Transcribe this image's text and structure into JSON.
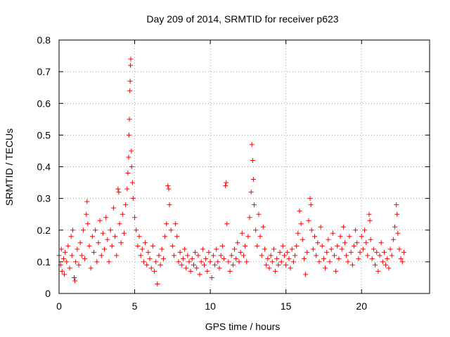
{
  "chart_data": {
    "type": "scatter",
    "title": "Day 209 of 2014, SRMTID for receiver p623",
    "xlabel": "GPS time / hours",
    "ylabel": "SRMTID / TECUs",
    "xlim": [
      0,
      24.5
    ],
    "ylim": [
      0,
      0.8
    ],
    "xticks": [
      0,
      5,
      10,
      15,
      20
    ],
    "yticks": [
      0,
      0.1,
      0.2,
      0.3,
      0.4,
      0.5,
      0.6,
      0.7,
      0.8
    ],
    "xtick_labels": [
      "0",
      "5",
      "10",
      "15",
      "20"
    ],
    "ytick_labels": [
      "0",
      "0.1",
      "0.2",
      "0.3",
      "0.4",
      "0.5",
      "0.6",
      "0.7",
      "0.8"
    ],
    "grid": true,
    "marker": "+",
    "color": "#ff0000",
    "series": [
      {
        "name": "SRMTID",
        "points": [
          [
            0.0,
            0.12
          ],
          [
            0.1,
            0.09
          ],
          [
            0.15,
            0.14
          ],
          [
            0.2,
            0.07
          ],
          [
            0.3,
            0.11
          ],
          [
            0.35,
            0.06
          ],
          [
            0.4,
            0.13
          ],
          [
            0.5,
            0.1
          ],
          [
            0.6,
            0.15
          ],
          [
            0.7,
            0.08
          ],
          [
            0.8,
            0.18
          ],
          [
            0.85,
            0.12
          ],
          [
            0.9,
            0.2
          ],
          [
            1.0,
            0.05
          ],
          [
            1.05,
            0.04
          ],
          [
            1.1,
            0.1
          ],
          [
            1.2,
            0.14
          ],
          [
            1.3,
            0.09
          ],
          [
            1.4,
            0.16
          ],
          [
            1.5,
            0.12
          ],
          [
            1.6,
            0.2
          ],
          [
            1.7,
            0.11
          ],
          [
            1.8,
            0.25
          ],
          [
            1.85,
            0.29
          ],
          [
            1.9,
            0.22
          ],
          [
            2.0,
            0.15
          ],
          [
            2.1,
            0.08
          ],
          [
            2.2,
            0.18
          ],
          [
            2.3,
            0.13
          ],
          [
            2.4,
            0.2
          ],
          [
            2.5,
            0.1
          ],
          [
            2.6,
            0.16
          ],
          [
            2.7,
            0.23
          ],
          [
            2.8,
            0.12
          ],
          [
            2.9,
            0.19
          ],
          [
            3.0,
            0.14
          ],
          [
            3.1,
            0.24
          ],
          [
            3.2,
            0.17
          ],
          [
            3.3,
            0.1
          ],
          [
            3.4,
            0.2
          ],
          [
            3.5,
            0.15
          ],
          [
            3.6,
            0.27
          ],
          [
            3.7,
            0.18
          ],
          [
            3.8,
            0.12
          ],
          [
            3.9,
            0.33
          ],
          [
            3.95,
            0.32
          ],
          [
            4.0,
            0.22
          ],
          [
            4.1,
            0.16
          ],
          [
            4.2,
            0.25
          ],
          [
            4.3,
            0.19
          ],
          [
            4.4,
            0.28
          ],
          [
            4.5,
            0.33
          ],
          [
            4.55,
            0.38
          ],
          [
            4.6,
            0.43
          ],
          [
            4.62,
            0.5
          ],
          [
            4.65,
            0.55
          ],
          [
            4.68,
            0.64
          ],
          [
            4.7,
            0.67
          ],
          [
            4.72,
            0.72
          ],
          [
            4.74,
            0.74
          ],
          [
            4.78,
            0.45
          ],
          [
            4.8,
            0.4
          ],
          [
            4.85,
            0.35
          ],
          [
            4.9,
            0.3
          ],
          [
            5.0,
            0.24
          ],
          [
            5.1,
            0.2
          ],
          [
            5.2,
            0.15
          ],
          [
            5.3,
            0.18
          ],
          [
            5.4,
            0.12
          ],
          [
            5.5,
            0.14
          ],
          [
            5.6,
            0.1
          ],
          [
            5.7,
            0.16
          ],
          [
            5.8,
            0.09
          ],
          [
            5.9,
            0.13
          ],
          [
            6.0,
            0.11
          ],
          [
            6.1,
            0.08
          ],
          [
            6.2,
            0.15
          ],
          [
            6.3,
            0.07
          ],
          [
            6.4,
            0.1
          ],
          [
            6.5,
            0.03
          ],
          [
            6.6,
            0.12
          ],
          [
            6.7,
            0.09
          ],
          [
            6.8,
            0.14
          ],
          [
            6.9,
            0.11
          ],
          [
            7.0,
            0.18
          ],
          [
            7.1,
            0.22
          ],
          [
            7.2,
            0.34
          ],
          [
            7.25,
            0.33
          ],
          [
            7.3,
            0.28
          ],
          [
            7.4,
            0.2
          ],
          [
            7.5,
            0.15
          ],
          [
            7.6,
            0.12
          ],
          [
            7.7,
            0.22
          ],
          [
            7.8,
            0.18
          ],
          [
            7.9,
            0.1
          ],
          [
            8.0,
            0.13
          ],
          [
            8.1,
            0.09
          ],
          [
            8.2,
            0.11
          ],
          [
            8.3,
            0.14
          ],
          [
            8.4,
            0.08
          ],
          [
            8.5,
            0.12
          ],
          [
            8.6,
            0.1
          ],
          [
            8.7,
            0.07
          ],
          [
            8.8,
            0.11
          ],
          [
            8.9,
            0.09
          ],
          [
            9.0,
            0.13
          ],
          [
            9.1,
            0.08
          ],
          [
            9.2,
            0.12
          ],
          [
            9.3,
            0.06
          ],
          [
            9.4,
            0.1
          ],
          [
            9.5,
            0.14
          ],
          [
            9.6,
            0.09
          ],
          [
            9.7,
            0.11
          ],
          [
            9.8,
            0.07
          ],
          [
            9.9,
            0.13
          ],
          [
            10.0,
            0.1
          ],
          [
            10.1,
            0.05
          ],
          [
            10.2,
            0.12
          ],
          [
            10.3,
            0.09
          ],
          [
            10.4,
            0.14
          ],
          [
            10.5,
            0.1
          ],
          [
            10.6,
            0.08
          ],
          [
            10.7,
            0.12
          ],
          [
            10.8,
            0.15
          ],
          [
            10.9,
            0.11
          ],
          [
            11.0,
            0.34
          ],
          [
            11.05,
            0.35
          ],
          [
            11.1,
            0.22
          ],
          [
            11.2,
            0.1
          ],
          [
            11.3,
            0.07
          ],
          [
            11.4,
            0.12
          ],
          [
            11.5,
            0.09
          ],
          [
            11.6,
            0.14
          ],
          [
            11.7,
            0.11
          ],
          [
            11.8,
            0.16
          ],
          [
            11.9,
            0.1
          ],
          [
            12.0,
            0.13
          ],
          [
            12.1,
            0.19
          ],
          [
            12.2,
            0.12
          ],
          [
            12.3,
            0.15
          ],
          [
            12.4,
            0.1
          ],
          [
            12.5,
            0.18
          ],
          [
            12.6,
            0.24
          ],
          [
            12.7,
            0.32
          ],
          [
            12.75,
            0.47
          ],
          [
            12.8,
            0.42
          ],
          [
            12.85,
            0.36
          ],
          [
            12.9,
            0.28
          ],
          [
            13.0,
            0.2
          ],
          [
            13.1,
            0.15
          ],
          [
            13.2,
            0.25
          ],
          [
            13.3,
            0.18
          ],
          [
            13.4,
            0.12
          ],
          [
            13.5,
            0.21
          ],
          [
            13.6,
            0.14
          ],
          [
            13.7,
            0.09
          ],
          [
            13.8,
            0.11
          ],
          [
            13.9,
            0.08
          ],
          [
            14.0,
            0.12
          ],
          [
            14.1,
            0.1
          ],
          [
            14.2,
            0.14
          ],
          [
            14.3,
            0.07
          ],
          [
            14.4,
            0.11
          ],
          [
            14.5,
            0.09
          ],
          [
            14.6,
            0.13
          ],
          [
            14.7,
            0.1
          ],
          [
            14.8,
            0.15
          ],
          [
            14.9,
            0.12
          ],
          [
            15.0,
            0.09
          ],
          [
            15.1,
            0.13
          ],
          [
            15.2,
            0.11
          ],
          [
            15.3,
            0.08
          ],
          [
            15.4,
            0.14
          ],
          [
            15.5,
            0.1
          ],
          [
            15.6,
            0.12
          ],
          [
            15.7,
            0.15
          ],
          [
            15.8,
            0.19
          ],
          [
            15.9,
            0.26
          ],
          [
            16.0,
            0.22
          ],
          [
            16.1,
            0.17
          ],
          [
            16.2,
            0.11
          ],
          [
            16.3,
            0.06
          ],
          [
            16.4,
            0.13
          ],
          [
            16.5,
            0.23
          ],
          [
            16.6,
            0.3
          ],
          [
            16.65,
            0.28
          ],
          [
            16.7,
            0.2
          ],
          [
            16.8,
            0.14
          ],
          [
            16.9,
            0.18
          ],
          [
            17.0,
            0.12
          ],
          [
            17.1,
            0.16
          ],
          [
            17.2,
            0.1
          ],
          [
            17.3,
            0.21
          ],
          [
            17.4,
            0.15
          ],
          [
            17.5,
            0.11
          ],
          [
            17.6,
            0.08
          ],
          [
            17.7,
            0.13
          ],
          [
            17.8,
            0.17
          ],
          [
            17.9,
            0.1
          ],
          [
            18.0,
            0.14
          ],
          [
            18.1,
            0.19
          ],
          [
            18.2,
            0.12
          ],
          [
            18.3,
            0.07
          ],
          [
            18.4,
            0.15
          ],
          [
            18.5,
            0.11
          ],
          [
            18.6,
            0.18
          ],
          [
            18.7,
            0.14
          ],
          [
            18.8,
            0.21
          ],
          [
            18.9,
            0.16
          ],
          [
            19.0,
            0.12
          ],
          [
            19.1,
            0.1
          ],
          [
            19.2,
            0.18
          ],
          [
            19.3,
            0.13
          ],
          [
            19.4,
            0.09
          ],
          [
            19.5,
            0.15
          ],
          [
            19.6,
            0.2
          ],
          [
            19.7,
            0.16
          ],
          [
            19.8,
            0.11
          ],
          [
            19.9,
            0.13
          ],
          [
            20.0,
            0.18
          ],
          [
            20.1,
            0.14
          ],
          [
            20.2,
            0.2
          ],
          [
            20.3,
            0.16
          ],
          [
            20.4,
            0.12
          ],
          [
            20.5,
            0.25
          ],
          [
            20.55,
            0.23
          ],
          [
            20.6,
            0.17
          ],
          [
            20.7,
            0.11
          ],
          [
            20.8,
            0.14
          ],
          [
            20.9,
            0.09
          ],
          [
            21.0,
            0.13
          ],
          [
            21.1,
            0.07
          ],
          [
            21.2,
            0.12
          ],
          [
            21.3,
            0.16
          ],
          [
            21.4,
            0.1
          ],
          [
            21.5,
            0.13
          ],
          [
            21.6,
            0.09
          ],
          [
            21.7,
            0.11
          ],
          [
            21.8,
            0.08
          ],
          [
            21.9,
            0.14
          ],
          [
            22.0,
            0.12
          ],
          [
            22.1,
            0.17
          ],
          [
            22.2,
            0.21
          ],
          [
            22.3,
            0.28
          ],
          [
            22.35,
            0.25
          ],
          [
            22.4,
            0.19
          ],
          [
            22.5,
            0.14
          ],
          [
            22.6,
            0.11
          ],
          [
            22.7,
            0.1
          ],
          [
            22.8,
            0.13
          ]
        ]
      }
    ]
  }
}
